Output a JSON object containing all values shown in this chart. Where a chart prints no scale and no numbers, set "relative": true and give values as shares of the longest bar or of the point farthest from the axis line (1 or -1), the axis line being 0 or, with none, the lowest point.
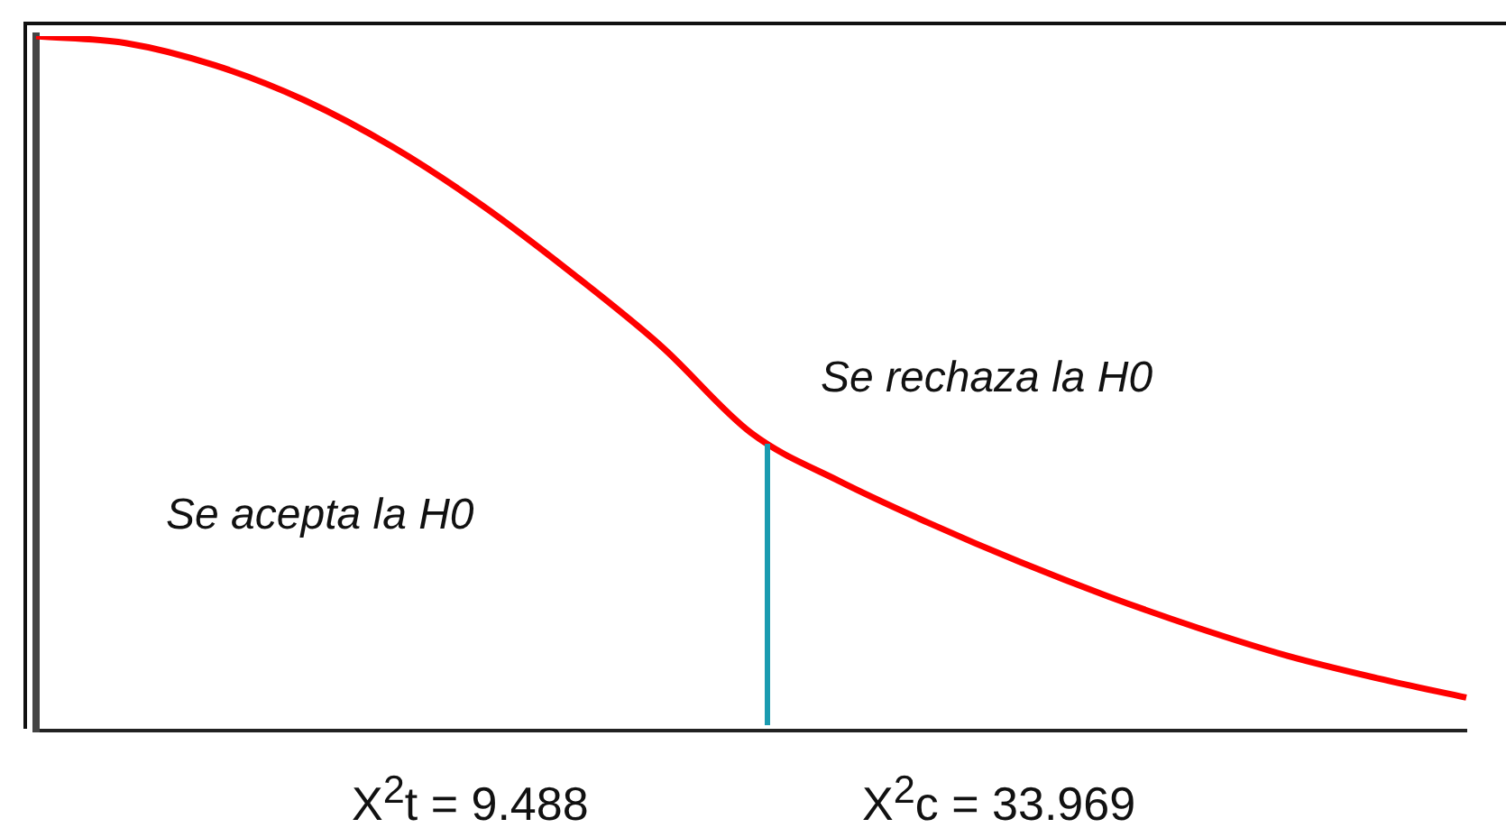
{
  "chart_data": {
    "type": "line",
    "relative": true,
    "color": "#ff0000",
    "categories": [
      null,
      null,
      null,
      null,
      null,
      null,
      null,
      null,
      null,
      null,
      null,
      null,
      null,
      null,
      null,
      null,
      null
    ],
    "values": [
      1,
      0.99,
      0.958,
      0.908,
      0.84,
      0.756,
      0.659,
      0.554,
      0.43,
      0.36,
      0.3,
      0.245,
      0.195,
      0.15,
      0.11,
      0.078,
      0.05
    ],
    "annotations": [
      "Se acepta la H0",
      "Se rechaza la H0",
      "X$^{2}$t = 9.488",
      "X$^{2}$c = 33.969"
    ],
    "grid": false,
    "legend": false,
    "marker": "none"
  }
}
